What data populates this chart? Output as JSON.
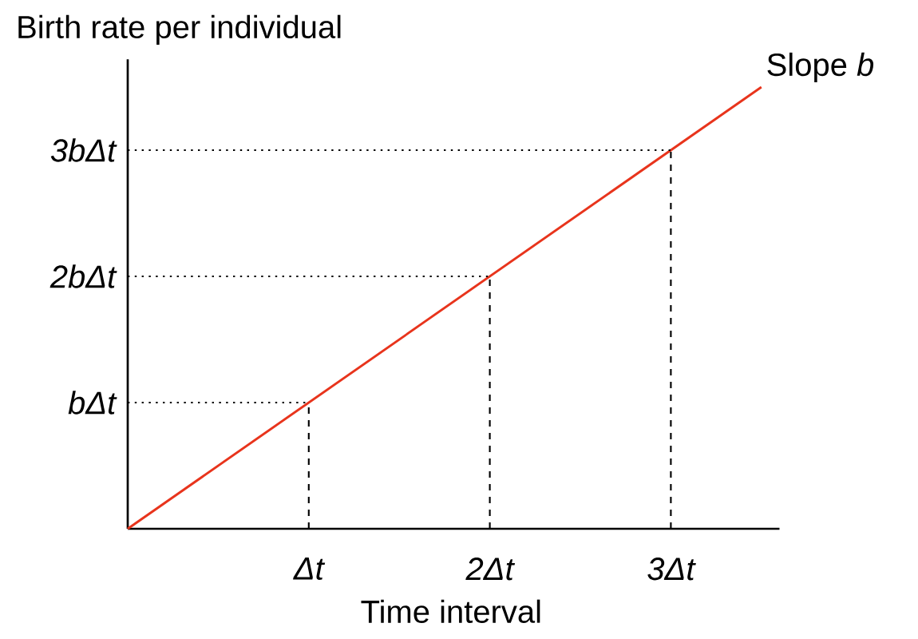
{
  "chart_data": {
    "type": "line",
    "xlabel": "Time interval",
    "ylabel": "Birth rate per individual",
    "x": [
      0,
      3.5
    ],
    "series": [
      {
        "color": "#e8341c",
        "values": [
          0,
          3.5
        ]
      }
    ],
    "xlim": [
      0,
      3.6
    ],
    "ylim": [
      0,
      3.72
    ],
    "xticks": [
      {
        "value": 1,
        "label": "Δt"
      },
      {
        "value": 2,
        "label": "2Δt"
      },
      {
        "value": 3,
        "label": "3Δt"
      }
    ],
    "yticks": [
      {
        "value": 1,
        "label": "bΔt"
      },
      {
        "value": 2,
        "label": "2bΔt"
      },
      {
        "value": 3,
        "label": "3bΔt"
      }
    ],
    "ref_lines": [
      {
        "axis": "y",
        "value": 1,
        "line_style": "dotted"
      },
      {
        "axis": "y",
        "value": 2,
        "line_style": "dotted"
      },
      {
        "axis": "y",
        "value": 3,
        "line_style": "dotted"
      },
      {
        "axis": "x",
        "value": 1,
        "line_style": "dashed"
      },
      {
        "axis": "x",
        "value": 2,
        "line_style": "dashed"
      },
      {
        "axis": "x",
        "value": 3,
        "line_style": "dashed"
      }
    ],
    "annotations": [
      {
        "text": "Slope *b*",
        "x": 3.5,
        "y": 3.5
      }
    ],
    "grid": false,
    "marker": "none",
    "line_style": "solid"
  }
}
